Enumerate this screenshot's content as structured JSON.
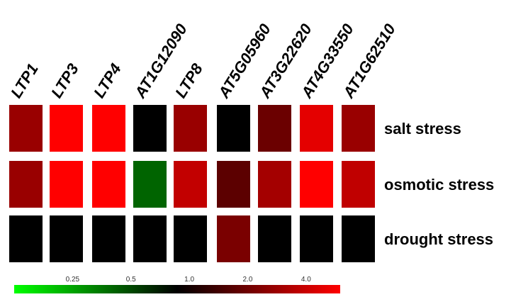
{
  "chart_data": {
    "type": "heatmap",
    "title": "",
    "columns": [
      "LTP1",
      "LTP3",
      "LTP4",
      "AT1G12090",
      "LTP8",
      "AT5G05960",
      "AT3G22620",
      "AT4G33550",
      "AT1G62510"
    ],
    "rows": [
      "salt stress",
      "osmotic stress",
      "drought stress"
    ],
    "cell_colors": [
      [
        "#990000",
        "#ff0000",
        "#ff0000",
        "#000000",
        "#990000",
        "#000000",
        "#6b0000",
        "#e40000",
        "#990000"
      ],
      [
        "#990000",
        "#ff0000",
        "#ff0000",
        "#006400",
        "#c20000",
        "#5c0000",
        "#a40000",
        "#ff0000",
        "#c00000"
      ],
      [
        "#000000",
        "#000000",
        "#000000",
        "#000000",
        "#000000",
        "#7a0000",
        "#000000",
        "#000000",
        "#000000"
      ]
    ],
    "colorbar": {
      "ticks": [
        "0.25",
        "0.5",
        "1.0",
        "2.0",
        "4.0"
      ],
      "tick_values": [
        0.25,
        0.5,
        1.0,
        2.0,
        4.0
      ],
      "range": [
        0.125,
        6.0
      ],
      "scale": "log2",
      "colors": [
        "#00ff00",
        "#000000",
        "#ff0000"
      ]
    }
  }
}
